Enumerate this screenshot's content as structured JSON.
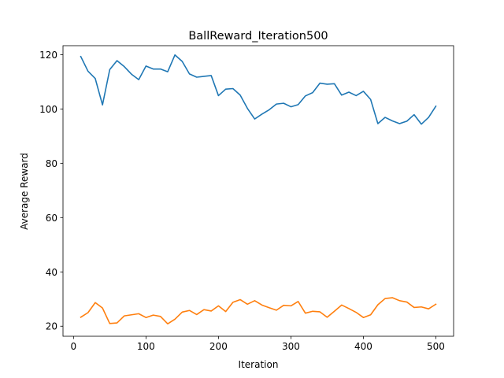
{
  "chart_data": {
    "type": "line",
    "title": "BallReward_Iteration500",
    "xlabel": "Iteration",
    "ylabel": "Average Reward",
    "xlim": [
      -14.5,
      524.5
    ],
    "ylim": [
      16.3,
      123.3
    ],
    "xticks": [
      0,
      100,
      200,
      300,
      400,
      500
    ],
    "yticks": [
      20,
      40,
      60,
      80,
      100,
      120
    ],
    "grid": false,
    "x": [
      10,
      20,
      30,
      40,
      50,
      60,
      70,
      80,
      90,
      100,
      110,
      120,
      130,
      140,
      150,
      160,
      170,
      180,
      190,
      200,
      210,
      220,
      230,
      240,
      250,
      260,
      270,
      280,
      290,
      300,
      310,
      320,
      330,
      340,
      350,
      360,
      370,
      380,
      390,
      400,
      410,
      420,
      430,
      440,
      450,
      460,
      470,
      480,
      490,
      500
    ],
    "series": [
      {
        "color": "#1f77b4",
        "values": [
          119.3,
          113.9,
          111.2,
          101.5,
          114.5,
          117.8,
          115.6,
          112.8,
          110.8,
          115.8,
          114.7,
          114.7,
          113.7,
          119.9,
          117.5,
          112.9,
          111.7,
          112.0,
          112.3,
          104.9,
          107.3,
          107.5,
          105.1,
          100.2,
          96.3,
          98.1,
          99.7,
          101.8,
          102.1,
          100.8,
          101.6,
          104.8,
          106.0,
          109.5,
          109.1,
          109.3,
          105.1,
          106.2,
          104.9,
          106.5,
          103.5,
          94.6,
          96.9,
          95.6,
          94.6,
          95.5,
          97.9,
          94.4,
          96.9,
          101.0
        ]
      },
      {
        "color": "#ff7f0e",
        "values": [
          23.3,
          25.0,
          28.7,
          26.7,
          21.0,
          21.2,
          23.8,
          24.2,
          24.6,
          23.2,
          24.1,
          23.6,
          20.9,
          22.6,
          25.2,
          25.8,
          24.3,
          26.1,
          25.6,
          27.5,
          25.4,
          28.8,
          29.8,
          28.1,
          29.4,
          27.8,
          26.8,
          25.9,
          27.7,
          27.5,
          29.1,
          24.8,
          25.5,
          25.3,
          23.3,
          25.5,
          27.8,
          26.5,
          25.1,
          23.2,
          24.2,
          27.9,
          30.2,
          30.5,
          29.4,
          28.9,
          26.9,
          27.1,
          26.4,
          28.1
        ]
      }
    ]
  }
}
